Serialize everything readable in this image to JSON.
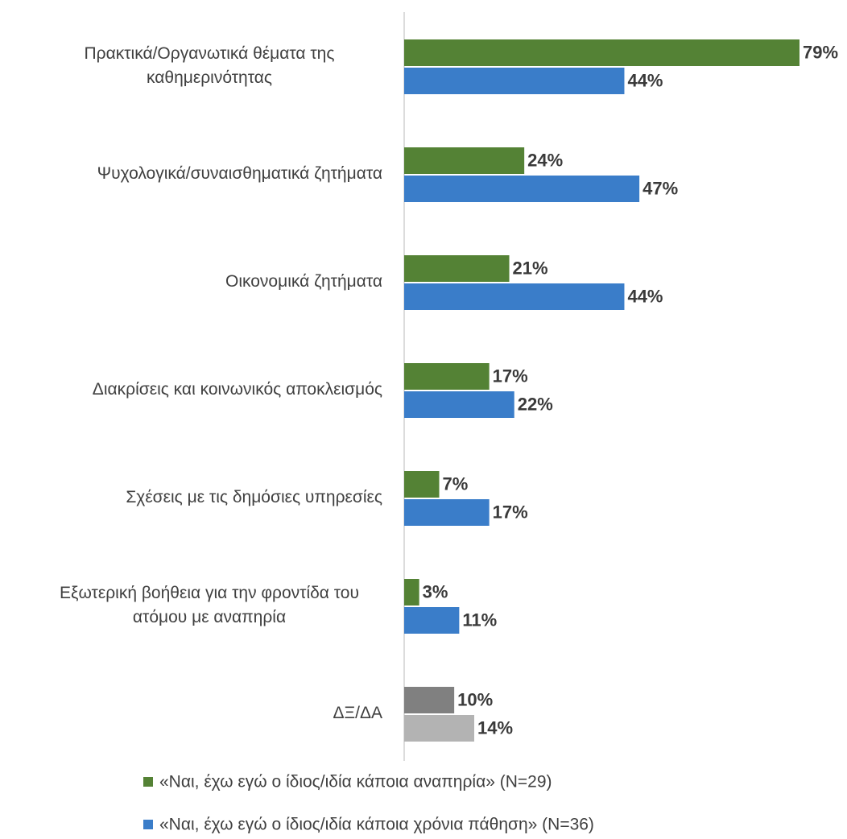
{
  "chart_data": {
    "type": "hbar",
    "categories": [
      "Πρακτικά/Οργανωτικά θέματα της καθημερινότητας",
      "Ψυχολογικά/συναισθηματικά  ζητήματα",
      "Οικονομικά ζητήματα",
      "Διακρίσεις και κοινωνικός αποκλεισμός",
      "Σχέσεις με τις δημόσιες υπηρεσίες",
      "Εξωτερική βοήθεια για την φροντίδα του ατόμου με αναπηρία",
      "ΔΞ/ΔΑ"
    ],
    "series": [
      {
        "name": "«Ναι, έχω εγώ ο ίδιος/ιδία κάποια αναπηρία»  (N=29)",
        "color": "#548235",
        "colors": [
          "#548235",
          "#548235",
          "#548235",
          "#548235",
          "#548235",
          "#548235",
          "#808080"
        ],
        "values": [
          79,
          24,
          21,
          17,
          7,
          3,
          10
        ],
        "value_labels": [
          "79%",
          "24%",
          "21%",
          "17%",
          "7%",
          "3%",
          "10%"
        ]
      },
      {
        "name": "«Ναι, έχω εγώ ο ίδιος/ιδία κάποια χρόνια πάθηση» (N=36)",
        "color": "#3a7dc9",
        "colors": [
          "#3a7dc9",
          "#3a7dc9",
          "#3a7dc9",
          "#3a7dc9",
          "#3a7dc9",
          "#3a7dc9",
          "#b3b3b3"
        ],
        "values": [
          44,
          47,
          44,
          22,
          17,
          11,
          14
        ],
        "value_labels": [
          "44%",
          "47%",
          "44%",
          "22%",
          "17%",
          "11%",
          "14%"
        ]
      }
    ],
    "legend": "bottom"
  }
}
